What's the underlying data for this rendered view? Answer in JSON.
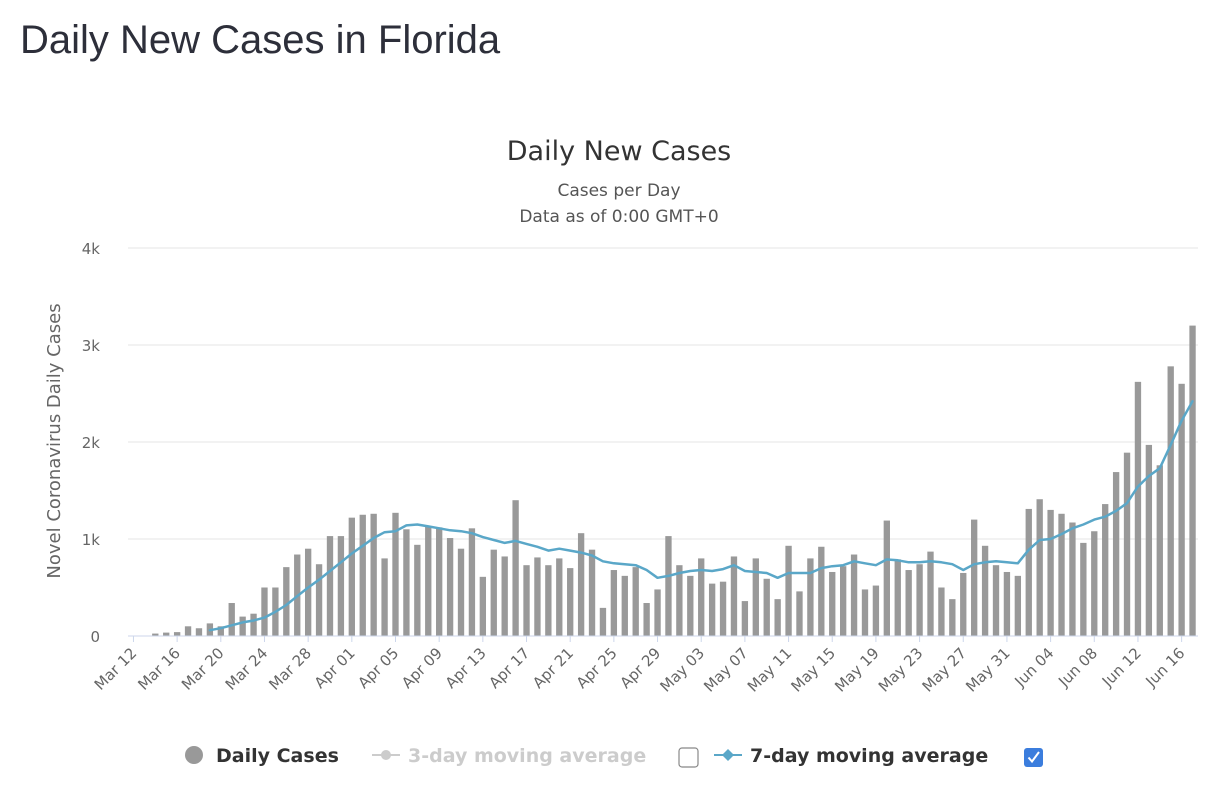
{
  "page_title": "Daily New Cases in Florida",
  "colors": {
    "bar": "#999999",
    "line": "#5aa7c8",
    "grid": "#e6e6e6",
    "legend_disabled": "#cccccc",
    "checkbox_checked": "#3b7ddd"
  },
  "chart_data": {
    "type": "bar",
    "title": "Daily New Cases",
    "subtitle_lines": [
      "Cases per Day",
      "Data as of 0:00 GMT+0"
    ],
    "ylabel": "Novel Coronavirus Daily Cases",
    "xlabel": "",
    "ylim": [
      0,
      4000
    ],
    "yticks": [
      0,
      1000,
      2000,
      3000,
      4000
    ],
    "ytick_labels": [
      "0",
      "1k",
      "2k",
      "3k",
      "4k"
    ],
    "xtick_labels": [
      "Mar 12",
      "Mar 16",
      "Mar 20",
      "Mar 24",
      "Mar 28",
      "Apr 01",
      "Apr 05",
      "Apr 09",
      "Apr 13",
      "Apr 17",
      "Apr 21",
      "Apr 25",
      "Apr 29",
      "May 03",
      "May 07",
      "May 11",
      "May 15",
      "May 19",
      "May 23",
      "May 27",
      "May 31",
      "Jun 04",
      "Jun 08",
      "Jun 12",
      "Jun 16"
    ],
    "grid": true,
    "legend_position": "bottom",
    "series": [
      {
        "name": "Daily Cases",
        "type": "bar",
        "values": [
          2,
          5,
          25,
          35,
          40,
          100,
          80,
          130,
          100,
          340,
          200,
          230,
          500,
          500,
          710,
          840,
          900,
          740,
          1030,
          1030,
          1220,
          1250,
          1260,
          800,
          1270,
          1100,
          940,
          1130,
          1120,
          1010,
          900,
          1110,
          610,
          890,
          820,
          1400,
          730,
          810,
          730,
          800,
          700,
          1060,
          890,
          290,
          680,
          620,
          710,
          340,
          480,
          1030,
          730,
          620,
          800,
          540,
          560,
          820,
          360,
          800,
          590,
          380,
          930,
          460,
          800,
          920,
          660,
          720,
          840,
          480,
          520,
          1190,
          790,
          680,
          740,
          870,
          500,
          380,
          650,
          1200,
          930,
          730,
          660,
          620,
          1310,
          1410,
          1300,
          1260,
          1170,
          960,
          1080,
          1360,
          1690,
          1890,
          2620,
          1970,
          1760,
          2780,
          2600,
          3200
        ]
      },
      {
        "name": "3-day moving average",
        "type": "line",
        "enabled": false
      },
      {
        "name": "7-day moving average",
        "type": "line",
        "enabled": true,
        "values": [
          null,
          null,
          null,
          null,
          null,
          null,
          null,
          60,
          80,
          110,
          140,
          160,
          190,
          250,
          320,
          410,
          500,
          580,
          670,
          760,
          850,
          930,
          1010,
          1070,
          1080,
          1140,
          1150,
          1130,
          1110,
          1090,
          1080,
          1060,
          1020,
          990,
          960,
          980,
          950,
          920,
          880,
          900,
          880,
          860,
          830,
          770,
          750,
          740,
          730,
          680,
          600,
          620,
          650,
          670,
          680,
          670,
          690,
          730,
          670,
          660,
          650,
          600,
          650,
          650,
          650,
          700,
          720,
          730,
          770,
          750,
          730,
          790,
          780,
          760,
          760,
          770,
          760,
          740,
          680,
          740,
          760,
          770,
          760,
          750,
          890,
          990,
          1000,
          1050,
          1110,
          1150,
          1200,
          1230,
          1290,
          1370,
          1540,
          1650,
          1730,
          1970,
          2220,
          2420
        ]
      }
    ]
  },
  "legend": {
    "items": [
      {
        "label": "Daily Cases"
      },
      {
        "label": "3-day moving average"
      },
      {
        "label": "7-day moving average"
      }
    ]
  }
}
